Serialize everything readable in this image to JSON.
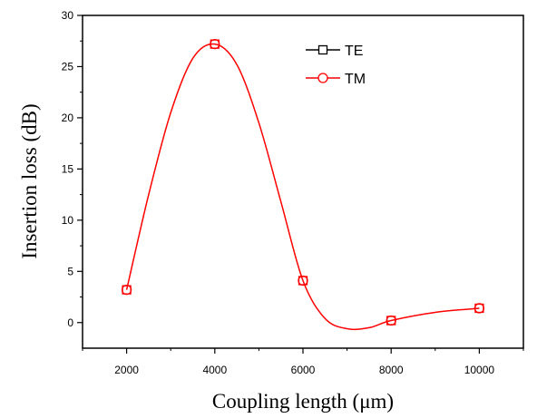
{
  "chart_data": {
    "type": "line",
    "xlabel": "Coupling length (μm)",
    "ylabel": "Insertion loss (dB)",
    "xlim": [
      1000,
      11000
    ],
    "ylim": [
      -2.5,
      30
    ],
    "x_ticks": [
      "2000",
      "4000",
      "6000",
      "8000",
      "10000"
    ],
    "y_ticks": [
      "0",
      "5",
      "10",
      "15",
      "20",
      "25",
      "30"
    ],
    "x": [
      2000,
      4000,
      6000,
      8000,
      10000
    ],
    "series": [
      {
        "name": "TE",
        "values": [
          3.2,
          27.2,
          4.1,
          0.2,
          1.4
        ],
        "color": "#000000",
        "marker": "square"
      },
      {
        "name": "TM",
        "values": [
          3.2,
          27.2,
          4.1,
          0.2,
          1.4
        ],
        "color": "#ff0000",
        "marker": "circle"
      }
    ],
    "curve_points": [
      [
        2000,
        3.2
      ],
      [
        2500,
        12.5
      ],
      [
        3000,
        20.5
      ],
      [
        3500,
        25.8
      ],
      [
        4000,
        27.2
      ],
      [
        4500,
        25.2
      ],
      [
        5000,
        19.5
      ],
      [
        5500,
        11.8
      ],
      [
        6000,
        4.1
      ],
      [
        6500,
        0.4
      ],
      [
        7000,
        -0.6
      ],
      [
        7500,
        -0.5
      ],
      [
        8000,
        0.2
      ],
      [
        9000,
        1.0
      ],
      [
        10000,
        1.4
      ]
    ],
    "grid": false,
    "legend_position": "top-right"
  }
}
